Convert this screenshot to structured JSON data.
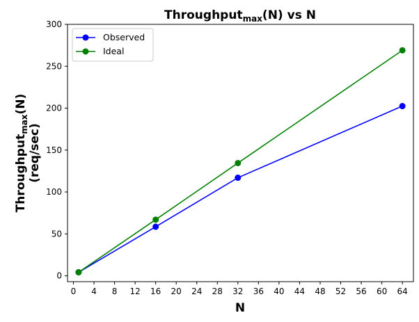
{
  "chart_data": {
    "type": "line",
    "title": {
      "main": "Throughput",
      "sub": "max",
      "rest": "(N) vs N"
    },
    "xlabel": "N",
    "ylabel": {
      "main": "Throughput",
      "sub": "max",
      "rest": "(N)",
      "line2": "(req/sec)"
    },
    "x": [
      1,
      16,
      32,
      64
    ],
    "xlim": [
      -1.15,
      66.15
    ],
    "ylim": [
      -7,
      300
    ],
    "xticks": [
      0,
      4,
      8,
      12,
      16,
      20,
      24,
      28,
      32,
      36,
      40,
      44,
      48,
      52,
      56,
      60,
      64
    ],
    "yticks": [
      0,
      50,
      100,
      150,
      200,
      250,
      300
    ],
    "grid": false,
    "legend": "top-left",
    "series": [
      {
        "name": "Observed",
        "color": "#0000ff",
        "values": [
          4.2,
          58.5,
          117,
          202.5
        ]
      },
      {
        "name": "Ideal",
        "color": "#008000",
        "values": [
          4.2,
          67,
          134.5,
          269
        ]
      }
    ]
  }
}
